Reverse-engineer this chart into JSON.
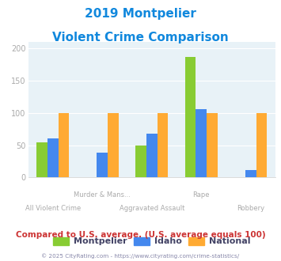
{
  "title_line1": "2019 Montpelier",
  "title_line2": "Violent Crime Comparison",
  "categories": [
    "All Violent Crime",
    "Murder & Mans...",
    "Aggravated Assault",
    "Rape",
    "Robbery"
  ],
  "cat_labels_line1": [
    "",
    "Murder & Mans...",
    "",
    "Rape",
    ""
  ],
  "cat_labels_line2": [
    "All Violent Crime",
    "",
    "Aggravated Assault",
    "",
    "Robbery"
  ],
  "montpelier": [
    54,
    0,
    49,
    187,
    0
  ],
  "idaho": [
    61,
    39,
    68,
    106,
    12
  ],
  "national": [
    100,
    100,
    100,
    100,
    100
  ],
  "colors": {
    "montpelier": "#88cc33",
    "idaho": "#4488ee",
    "national": "#ffaa33"
  },
  "ylim": [
    0,
    210
  ],
  "yticks": [
    0,
    50,
    100,
    150,
    200
  ],
  "plot_bg": "#e8f2f7",
  "title_color": "#1188dd",
  "label_color": "#aaaaaa",
  "tick_label_color": "#aaaaaa",
  "footer_text": "Compared to U.S. average. (U.S. average equals 100)",
  "copyright_text": "© 2025 CityRating.com - https://www.cityrating.com/crime-statistics/",
  "footer_color": "#cc3333",
  "copyright_color": "#8888aa",
  "legend_label_color": "#444466",
  "legend_labels": [
    "Montpelier",
    "Idaho",
    "National"
  ]
}
